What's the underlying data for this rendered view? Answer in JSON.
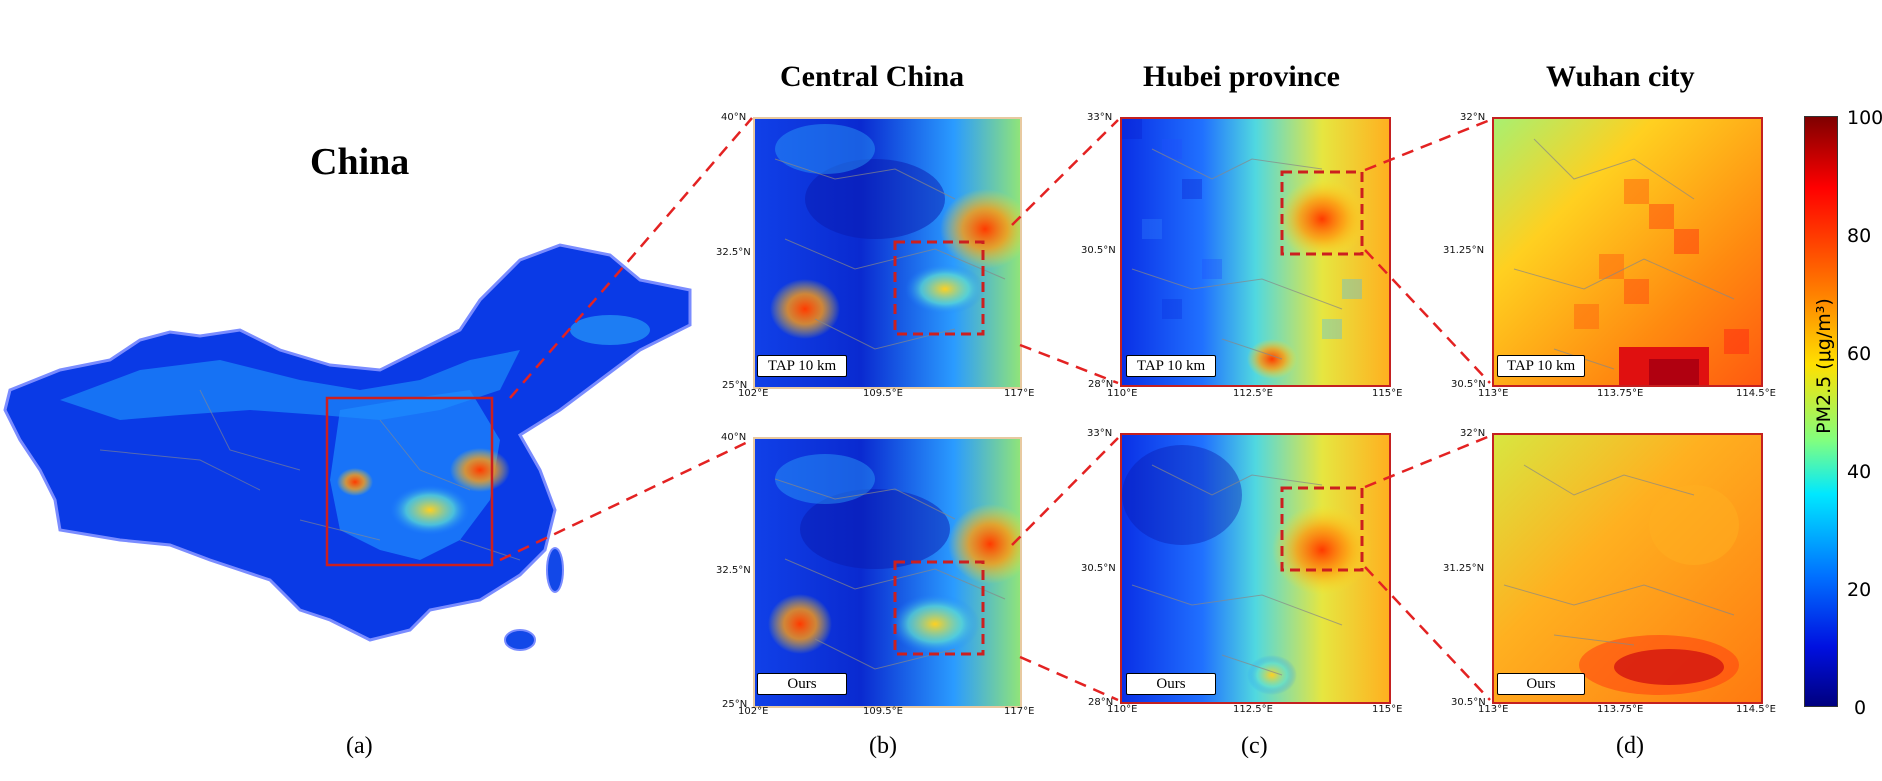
{
  "titles": {
    "china": "China",
    "central": "Central China",
    "hubei": "Hubei province",
    "wuhan": "Wuhan city"
  },
  "sublabels": {
    "a": "(a)",
    "b": "(b)",
    "c": "(c)",
    "d": "(d)"
  },
  "method_labels": {
    "tap": "TAP 10 km",
    "ours": "Ours"
  },
  "ticks": {
    "central": {
      "ytop": "40°N",
      "ymid": "32.5°N",
      "ybot": "25°N",
      "xleft": "102°E",
      "xmid": "109.5°E",
      "xright": "117°E"
    },
    "hubei": {
      "ytop": "33°N",
      "ymid": "30.5°N",
      "ybot": "28°N",
      "xleft": "110°E",
      "xmid": "112.5°E",
      "xright": "115°E"
    },
    "wuhan": {
      "ytop": "32°N",
      "ymid": "31.25°N",
      "ybot": "30.5°N",
      "xleft": "113°E",
      "xmid": "113.75°E",
      "xright": "114.5°E"
    }
  },
  "colorbar": {
    "title": "PM2.5 (μg/m³)",
    "ticks": [
      "100",
      "80",
      "60",
      "40",
      "20",
      "0"
    ],
    "colors": [
      "#7f0000",
      "#ff0000",
      "#ff8000",
      "#ffff00",
      "#80ff80",
      "#00ffff",
      "#0080ff",
      "#0000ff",
      "#00007f"
    ]
  },
  "colors": {
    "zoom_line": "#e32222",
    "box": "#cc1f1f",
    "panel_border_top": "#c42020",
    "panel_border_central": "#e8c9a0"
  }
}
